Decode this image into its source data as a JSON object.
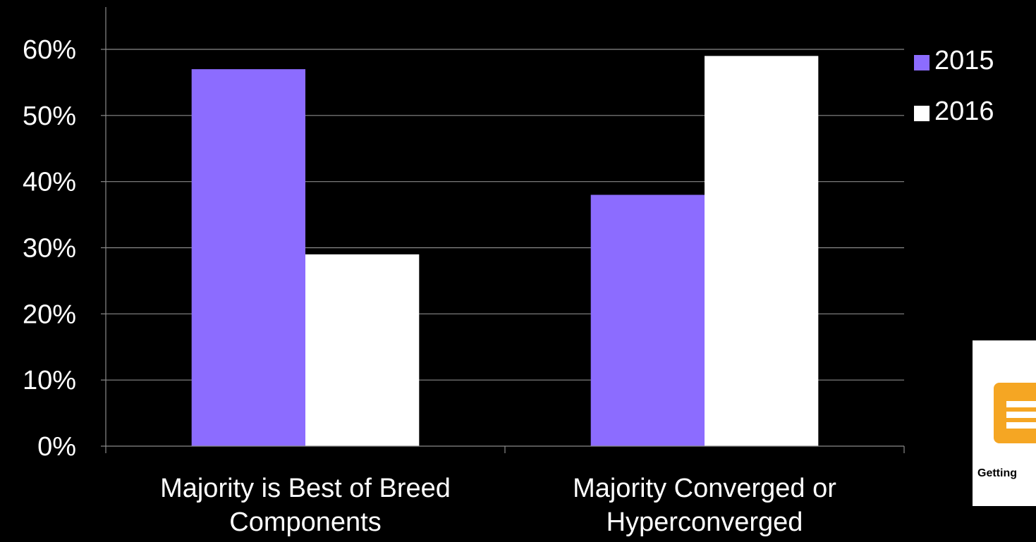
{
  "chart_data": {
    "type": "bar",
    "categories": [
      [
        "Majority is Best of Breed",
        "Components"
      ],
      [
        "Majority Converged or",
        "Hyperconverged"
      ]
    ],
    "series": [
      {
        "name": "2015",
        "values": [
          57,
          38
        ],
        "color": "#8c6cff"
      },
      {
        "name": "2016",
        "values": [
          29,
          59
        ],
        "color": "#ffffff"
      }
    ],
    "ylim": [
      0,
      60
    ],
    "yticks": [
      "0%",
      "10%",
      "20%",
      "30%",
      "40%",
      "50%",
      "60%"
    ],
    "grid": true,
    "legend_position": "top-right"
  },
  "badge": {
    "text": "Getting",
    "icon": "document-list-icon",
    "icon_color": "#f5a623"
  }
}
